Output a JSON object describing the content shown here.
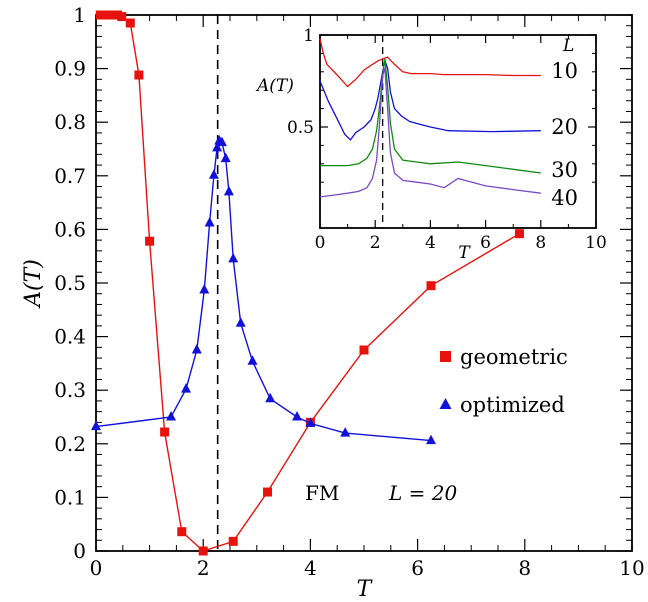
{
  "colors": {
    "geometric": "#e8120d",
    "optimized": "#1111d9",
    "inset_L10": "#e8120d",
    "inset_L20": "#1111d9",
    "inset_L30": "#118a11",
    "inset_L40": "#7a4bc4"
  },
  "chart_data": [
    {
      "type": "line",
      "title": "",
      "xlabel": "T",
      "ylabel": "A(T)",
      "xlim": [
        0,
        10
      ],
      "ylim": [
        0,
        1
      ],
      "x_ticks": [
        "0",
        "2",
        "4",
        "6",
        "8",
        "10"
      ],
      "y_ticks": [
        "0",
        "0.1",
        "0.2",
        "0.3",
        "0.4",
        "0.5",
        "0.6",
        "0.7",
        "0.8",
        "0.9",
        "1"
      ],
      "grid": false,
      "legend_position": "center-right",
      "vline_x": 2.27,
      "series": [
        {
          "name": "geometric",
          "marker": "square",
          "x": [
            0.08,
            0.16,
            0.24,
            0.32,
            0.4,
            0.48,
            0.64,
            0.8,
            1.0,
            1.28,
            1.6,
            2.0,
            2.56,
            3.2,
            4.0,
            5.0,
            6.25,
            7.9
          ],
          "y": [
            1.0,
            1.0,
            1.0,
            1.0,
            1.0,
            0.997,
            0.985,
            0.888,
            0.578,
            0.222,
            0.036,
            0.0,
            0.018,
            0.11,
            0.24,
            0.375,
            0.495,
            0.592
          ]
        },
        {
          "name": "optimized",
          "marker": "triangle",
          "x": [
            0.0,
            1.4,
            1.68,
            1.88,
            2.02,
            2.12,
            2.2,
            2.26,
            2.3,
            2.35,
            2.42,
            2.48,
            2.56,
            2.7,
            2.92,
            3.25,
            3.75,
            4.0,
            4.65,
            6.25
          ],
          "y": [
            0.232,
            0.25,
            0.302,
            0.375,
            0.487,
            0.612,
            0.701,
            0.752,
            0.765,
            0.762,
            0.732,
            0.67,
            0.545,
            0.425,
            0.354,
            0.284,
            0.25,
            0.238,
            0.22,
            0.206
          ]
        }
      ],
      "annotations": {
        "model": "FM",
        "size": "L = 20"
      }
    },
    {
      "type": "line",
      "title": "",
      "xlabel": "T",
      "ylabel": "A(T)",
      "xlim": [
        0,
        10
      ],
      "ylim": [
        0.1,
        1
      ],
      "x_ticks": [
        "0",
        "2",
        "4",
        "6",
        "8",
        "10"
      ],
      "y_ticks": [
        "0.5",
        "1"
      ],
      "vline_x": 2.27,
      "legend_title": "L",
      "series": [
        {
          "name": "10",
          "x": [
            0.0,
            0.12,
            0.25,
            0.45,
            0.7,
            1.0,
            1.3,
            1.6,
            1.9,
            2.1,
            2.27,
            2.45,
            2.7,
            3.0,
            3.3,
            3.6,
            4.0,
            4.5,
            5.0,
            6.0,
            7.0,
            8.0
          ],
          "y": [
            0.98,
            0.9,
            0.84,
            0.81,
            0.77,
            0.72,
            0.76,
            0.81,
            0.84,
            0.86,
            0.87,
            0.88,
            0.84,
            0.8,
            0.79,
            0.79,
            0.79,
            0.785,
            0.785,
            0.785,
            0.78,
            0.78
          ]
        },
        {
          "name": "20",
          "x": [
            0.0,
            0.3,
            0.6,
            0.9,
            1.1,
            1.3,
            1.6,
            1.85,
            2.0,
            2.1,
            2.2,
            2.27,
            2.35,
            2.45,
            2.55,
            2.7,
            2.95,
            3.25,
            3.75,
            4.0,
            4.65,
            6.25,
            8.0
          ],
          "y": [
            0.75,
            0.64,
            0.55,
            0.46,
            0.43,
            0.47,
            0.5,
            0.54,
            0.6,
            0.66,
            0.74,
            0.8,
            0.86,
            0.82,
            0.69,
            0.6,
            0.56,
            0.53,
            0.51,
            0.5,
            0.48,
            0.475,
            0.48
          ]
        },
        {
          "name": "30",
          "x": [
            0.0,
            0.5,
            1.0,
            1.4,
            1.7,
            1.9,
            2.05,
            2.15,
            2.27,
            2.35,
            2.45,
            2.55,
            2.7,
            3.0,
            3.5,
            4.0,
            5.0,
            6.0,
            7.0,
            8.0
          ],
          "y": [
            0.29,
            0.29,
            0.29,
            0.3,
            0.33,
            0.38,
            0.48,
            0.6,
            0.78,
            0.87,
            0.72,
            0.52,
            0.38,
            0.32,
            0.31,
            0.3,
            0.31,
            0.29,
            0.27,
            0.25
          ]
        },
        {
          "name": "40",
          "x": [
            0.0,
            0.5,
            1.0,
            1.4,
            1.7,
            1.9,
            2.05,
            2.15,
            2.27,
            2.35,
            2.45,
            2.55,
            2.7,
            3.0,
            3.5,
            4.0,
            4.5,
            5.0,
            6.0,
            7.0,
            8.0
          ],
          "y": [
            0.12,
            0.13,
            0.14,
            0.15,
            0.17,
            0.22,
            0.32,
            0.5,
            0.78,
            0.82,
            0.6,
            0.36,
            0.25,
            0.21,
            0.2,
            0.19,
            0.17,
            0.22,
            0.18,
            0.16,
            0.14
          ]
        }
      ]
    }
  ]
}
